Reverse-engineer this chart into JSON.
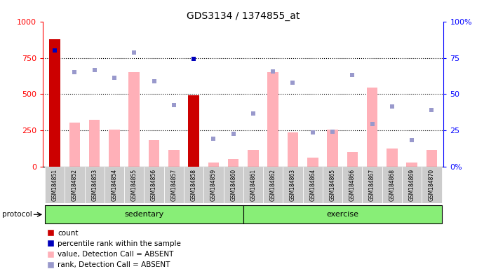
{
  "title": "GDS3134 / 1374855_at",
  "samples": [
    "GSM184851",
    "GSM184852",
    "GSM184853",
    "GSM184854",
    "GSM184855",
    "GSM184856",
    "GSM184857",
    "GSM184858",
    "GSM184859",
    "GSM184860",
    "GSM184861",
    "GSM184862",
    "GSM184863",
    "GSM184864",
    "GSM184865",
    "GSM184866",
    "GSM184867",
    "GSM184868",
    "GSM184869",
    "GSM184870"
  ],
  "pink_bars": [
    880,
    305,
    325,
    255,
    650,
    185,
    115,
    490,
    30,
    55,
    115,
    650,
    235,
    65,
    255,
    100,
    545,
    125,
    30,
    115
  ],
  "count_bars_idx": [
    0,
    7
  ],
  "count_bars_vals": [
    880,
    490
  ],
  "rank_dots": [
    null,
    650,
    665,
    615,
    785,
    590,
    425,
    null,
    195,
    225,
    365,
    655,
    580,
    235,
    240,
    630,
    295,
    415,
    185,
    390
  ],
  "percentile_dots_left_scale": [
    800,
    null,
    null,
    null,
    null,
    null,
    null,
    745,
    null,
    null,
    null,
    null,
    null,
    null,
    null,
    null,
    null,
    null,
    null,
    null
  ],
  "percentile_dots_right_scale": [
    80,
    null,
    null,
    null,
    null,
    null,
    null,
    74.5,
    null,
    null,
    null,
    null,
    null,
    null,
    null,
    null,
    null,
    null,
    null,
    null
  ],
  "ylim_left": [
    0,
    1000
  ],
  "ylim_right": [
    0,
    100
  ],
  "yticks_left": [
    0,
    250,
    500,
    750,
    1000
  ],
  "yticks_right": [
    0,
    25,
    50,
    75,
    100
  ],
  "ytick_labels_left": [
    "0",
    "250",
    "500",
    "750",
    "1000"
  ],
  "ytick_labels_right": [
    "0%",
    "25",
    "50",
    "75",
    "100%"
  ],
  "hlines": [
    250,
    500,
    750
  ],
  "group_sedentary_range": [
    0,
    9
  ],
  "group_exercise_range": [
    10,
    19
  ],
  "group_labels": [
    "sedentary",
    "exercise"
  ],
  "protocol_label": "protocol",
  "pink_color": "#FFB0B8",
  "red_color": "#CC0000",
  "blue_dark": "#0000BB",
  "blue_light": "#9999CC",
  "green_group": "#88EE77",
  "legend_items": [
    "count",
    "percentile rank within the sample",
    "value, Detection Call = ABSENT",
    "rank, Detection Call = ABSENT"
  ]
}
